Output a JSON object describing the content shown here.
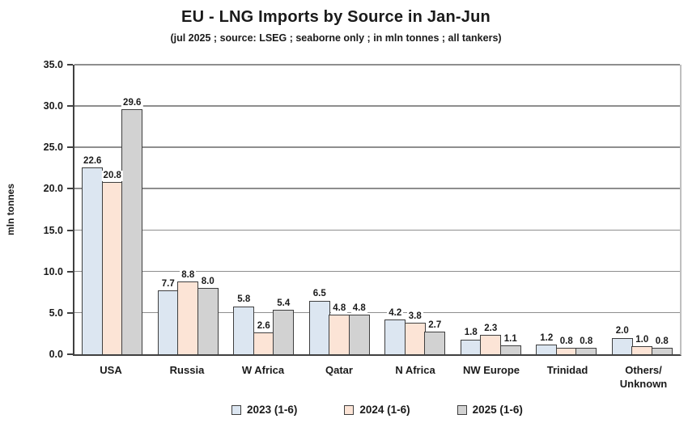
{
  "title": "EU - LNG Imports by Source in Jan-Jun",
  "subtitle": "(jul 2025 ; source: LSEG ; seaborne only ; in mln tonnes ; all tankers)",
  "colors": {
    "background": "#ffffff",
    "text": "#1a1a1a",
    "axis": "#404040",
    "gridline": "#8e8e8e",
    "plot_border": "#bfbfbf",
    "bar_border": "#3f3f3f"
  },
  "chart_data": {
    "type": "bar",
    "title": "EU - LNG Imports by Source in Jan-Jun",
    "subtitle": "(jul 2025 ; source: LSEG ; seaborne only ; in mln tonnes ; all tankers)",
    "xlabel": "",
    "ylabel": "mln tonnes",
    "ylim": [
      0,
      35
    ],
    "ytick_step": 5,
    "grid": true,
    "legend_position": "bottom",
    "value_labels": true,
    "value_label_format": "0.0",
    "categories": [
      "USA",
      "Russia",
      "W Africa",
      "Qatar",
      "N Africa",
      "NW Europe",
      "Trinidad",
      "Others/\nUnknown"
    ],
    "series": [
      {
        "name": "2023 (1-6)",
        "color": "#dce6f1",
        "values": [
          22.6,
          7.7,
          5.8,
          6.5,
          4.2,
          1.8,
          1.2,
          2.0
        ]
      },
      {
        "name": "2024 (1-6)",
        "color": "#fce4d6",
        "values": [
          20.8,
          8.8,
          2.6,
          4.8,
          3.8,
          2.3,
          0.8,
          1.0
        ]
      },
      {
        "name": "2025 (1-6)",
        "color": "#d2d2d2",
        "values": [
          29.6,
          8.0,
          5.4,
          4.8,
          2.7,
          1.1,
          0.8,
          0.8
        ]
      }
    ]
  }
}
